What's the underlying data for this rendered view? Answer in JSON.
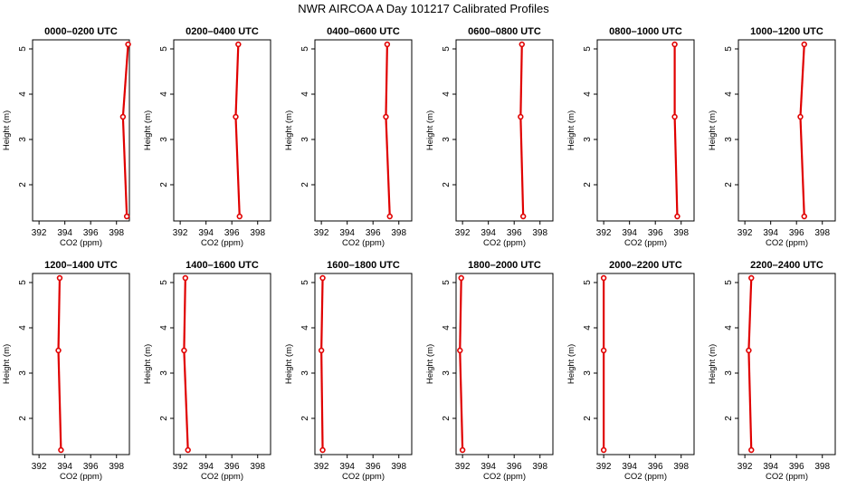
{
  "suptitle": "NWR AIRCOA A  Day 101217  Calibrated Profiles",
  "chart_data": [
    {
      "type": "line",
      "title": "0000–0200 UTC",
      "xlabel": "CO2 (ppm)",
      "ylabel": "Height (m)",
      "xlim": [
        391.5,
        399
      ],
      "ylim": [
        1.2,
        5.2
      ],
      "x_ticks": [
        392,
        394,
        396,
        398
      ],
      "y_ticks": [
        2,
        3,
        4,
        5
      ],
      "series": [
        {
          "x": [
            398.8,
            398.5,
            398.9
          ],
          "y": [
            1.3,
            3.5,
            5.1
          ]
        }
      ]
    },
    {
      "type": "line",
      "title": "0200–0400 UTC",
      "xlabel": "CO2 (ppm)",
      "ylabel": "Height (m)",
      "xlim": [
        391.5,
        399
      ],
      "ylim": [
        1.2,
        5.2
      ],
      "x_ticks": [
        392,
        394,
        396,
        398
      ],
      "y_ticks": [
        2,
        3,
        4,
        5
      ],
      "series": [
        {
          "x": [
            396.6,
            396.3,
            396.5
          ],
          "y": [
            1.3,
            3.5,
            5.1
          ]
        }
      ]
    },
    {
      "type": "line",
      "title": "0400–0600 UTC",
      "xlabel": "CO2 (ppm)",
      "ylabel": "Height (m)",
      "xlim": [
        391.5,
        399
      ],
      "ylim": [
        1.2,
        5.2
      ],
      "x_ticks": [
        392,
        394,
        396,
        398
      ],
      "y_ticks": [
        2,
        3,
        4,
        5
      ],
      "series": [
        {
          "x": [
            397.3,
            397.0,
            397.1
          ],
          "y": [
            1.3,
            3.5,
            5.1
          ]
        }
      ]
    },
    {
      "type": "line",
      "title": "0600–0800 UTC",
      "xlabel": "CO2 (ppm)",
      "ylabel": "Height (m)",
      "xlim": [
        391.5,
        399
      ],
      "ylim": [
        1.2,
        5.2
      ],
      "x_ticks": [
        392,
        394,
        396,
        398
      ],
      "y_ticks": [
        2,
        3,
        4,
        5
      ],
      "series": [
        {
          "x": [
            396.7,
            396.5,
            396.6
          ],
          "y": [
            1.3,
            3.5,
            5.1
          ]
        }
      ]
    },
    {
      "type": "line",
      "title": "0800–1000 UTC",
      "xlabel": "CO2 (ppm)",
      "ylabel": "Height (m)",
      "xlim": [
        391.5,
        399
      ],
      "ylim": [
        1.2,
        5.2
      ],
      "x_ticks": [
        392,
        394,
        396,
        398
      ],
      "y_ticks": [
        2,
        3,
        4,
        5
      ],
      "series": [
        {
          "x": [
            397.7,
            397.5,
            397.5
          ],
          "y": [
            1.3,
            3.5,
            5.1
          ]
        }
      ]
    },
    {
      "type": "line",
      "title": "1000–1200 UTC",
      "xlabel": "CO2 (ppm)",
      "ylabel": "Height (m)",
      "xlim": [
        391.5,
        399
      ],
      "ylim": [
        1.2,
        5.2
      ],
      "x_ticks": [
        392,
        394,
        396,
        398
      ],
      "y_ticks": [
        2,
        3,
        4,
        5
      ],
      "series": [
        {
          "x": [
            396.6,
            396.3,
            396.6
          ],
          "y": [
            1.3,
            3.5,
            5.1
          ]
        }
      ]
    },
    {
      "type": "line",
      "title": "1200–1400 UTC",
      "xlabel": "CO2 (ppm)",
      "ylabel": "Height (m)",
      "xlim": [
        391.5,
        399
      ],
      "ylim": [
        1.2,
        5.2
      ],
      "x_ticks": [
        392,
        394,
        396,
        398
      ],
      "y_ticks": [
        2,
        3,
        4,
        5
      ],
      "series": [
        {
          "x": [
            393.7,
            393.5,
            393.6
          ],
          "y": [
            1.3,
            3.5,
            5.1
          ]
        }
      ]
    },
    {
      "type": "line",
      "title": "1400–1600 UTC",
      "xlabel": "CO2 (ppm)",
      "ylabel": "Height (m)",
      "xlim": [
        391.5,
        399
      ],
      "ylim": [
        1.2,
        5.2
      ],
      "x_ticks": [
        392,
        394,
        396,
        398
      ],
      "y_ticks": [
        2,
        3,
        4,
        5
      ],
      "series": [
        {
          "x": [
            392.6,
            392.3,
            392.4
          ],
          "y": [
            1.3,
            3.5,
            5.1
          ]
        }
      ]
    },
    {
      "type": "line",
      "title": "1600–1800 UTC",
      "xlabel": "CO2 (ppm)",
      "ylabel": "Height (m)",
      "xlim": [
        391.5,
        399
      ],
      "ylim": [
        1.2,
        5.2
      ],
      "x_ticks": [
        392,
        394,
        396,
        398
      ],
      "y_ticks": [
        2,
        3,
        4,
        5
      ],
      "series": [
        {
          "x": [
            392.1,
            392.0,
            392.1
          ],
          "y": [
            1.3,
            3.5,
            5.1
          ]
        }
      ]
    },
    {
      "type": "line",
      "title": "1800–2000 UTC",
      "xlabel": "CO2 (ppm)",
      "ylabel": "Height (m)",
      "xlim": [
        391.5,
        399
      ],
      "ylim": [
        1.2,
        5.2
      ],
      "x_ticks": [
        392,
        394,
        396,
        398
      ],
      "y_ticks": [
        2,
        3,
        4,
        5
      ],
      "series": [
        {
          "x": [
            392.0,
            391.8,
            391.9
          ],
          "y": [
            1.3,
            3.5,
            5.1
          ]
        }
      ]
    },
    {
      "type": "line",
      "title": "2000–2200 UTC",
      "xlabel": "CO2 (ppm)",
      "ylabel": "Height (m)",
      "xlim": [
        391.5,
        399
      ],
      "ylim": [
        1.2,
        5.2
      ],
      "x_ticks": [
        392,
        394,
        396,
        398
      ],
      "y_ticks": [
        2,
        3,
        4,
        5
      ],
      "series": [
        {
          "x": [
            392.0,
            392.0,
            392.0
          ],
          "y": [
            1.3,
            3.5,
            5.1
          ]
        }
      ]
    },
    {
      "type": "line",
      "title": "2200–2400 UTC",
      "xlabel": "CO2 (ppm)",
      "ylabel": "Height (m)",
      "xlim": [
        391.5,
        399
      ],
      "ylim": [
        1.2,
        5.2
      ],
      "x_ticks": [
        392,
        394,
        396,
        398
      ],
      "y_ticks": [
        2,
        3,
        4,
        5
      ],
      "series": [
        {
          "x": [
            392.5,
            392.3,
            392.5
          ],
          "y": [
            1.3,
            3.5,
            5.1
          ]
        }
      ]
    }
  ]
}
